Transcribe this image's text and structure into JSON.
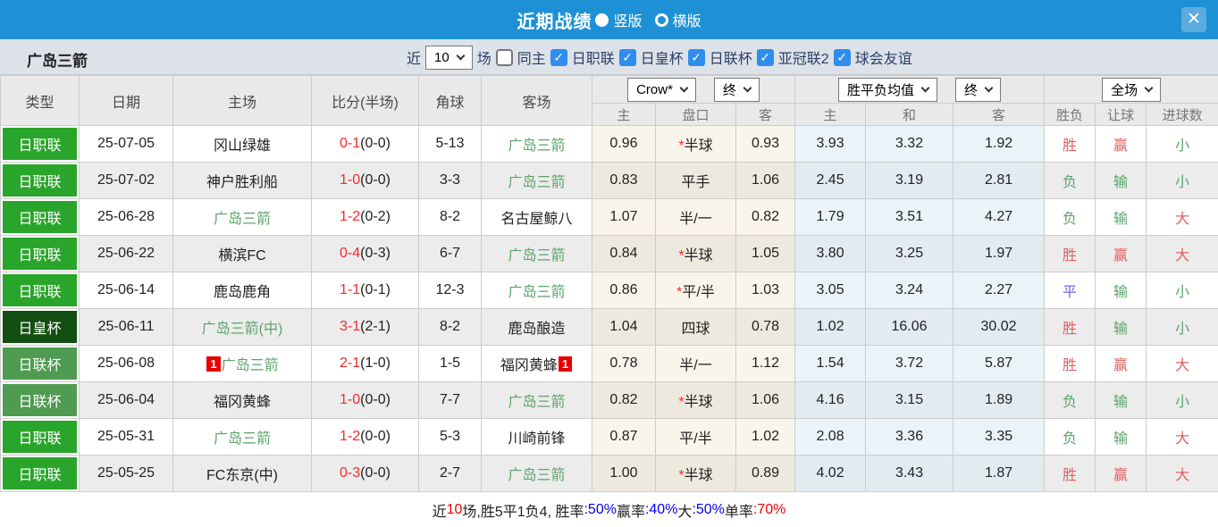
{
  "titlebar": {
    "title": "近期战绩",
    "vertical_label": "竖版",
    "horizontal_label": "横版",
    "close": "✕"
  },
  "filter": {
    "team": "广岛三箭",
    "near": "近",
    "count": "10",
    "matches": "场",
    "same_home": "同主",
    "leagues": [
      "日职联",
      "日皇杯",
      "日联杯",
      "亚冠联2",
      "球会友谊"
    ]
  },
  "league_colors": {
    "日职联": "#2aa52b",
    "日皇杯": "#134f13",
    "日联杯": "#4f9b51"
  },
  "table": {
    "col_headers": {
      "type": "类型",
      "date": "日期",
      "home": "主场",
      "score": "比分(半场)",
      "corner": "角球",
      "away": "客场"
    },
    "dropdowns": {
      "bookmaker": "Crow*",
      "bookmaker_period": "终",
      "avg": "胜平负均值",
      "avg_period": "终",
      "scope": "全场"
    },
    "sub_headers": [
      "主",
      "盘口",
      "客",
      "主",
      "和",
      "客",
      "胜负",
      "让球",
      "进球数"
    ],
    "rows": [
      {
        "league": "日职联",
        "date": "25-07-05",
        "home": {
          "name": "冈山绿雄",
          "green": false
        },
        "score": "0-1",
        "half": "(0-0)",
        "corner": "5-13",
        "away": {
          "name": "广岛三箭",
          "green": true
        },
        "odds": {
          "home": "0.96",
          "star": true,
          "handicap": "半球",
          "away": "0.93"
        },
        "avg": {
          "win": "3.93",
          "draw": "3.32",
          "lose": "1.92"
        },
        "result": {
          "outcome": "胜",
          "outcome_color": "red",
          "spread": "赢",
          "spread_color": "red",
          "goals": "小",
          "goals_color": "green"
        }
      },
      {
        "league": "日职联",
        "date": "25-07-02",
        "home": {
          "name": "神户胜利船",
          "green": false
        },
        "score": "1-0",
        "half": "(0-0)",
        "corner": "3-3",
        "away": {
          "name": "广岛三箭",
          "green": true
        },
        "odds": {
          "home": "0.83",
          "star": false,
          "handicap": "平手",
          "away": "1.06"
        },
        "avg": {
          "win": "2.45",
          "draw": "3.19",
          "lose": "2.81"
        },
        "result": {
          "outcome": "负",
          "outcome_color": "green",
          "spread": "输",
          "spread_color": "green",
          "goals": "小",
          "goals_color": "green"
        }
      },
      {
        "league": "日职联",
        "date": "25-06-28",
        "home": {
          "name": "广岛三箭",
          "green": true
        },
        "score": "1-2",
        "half": "(0-2)",
        "corner": "8-2",
        "away": {
          "name": "名古屋鲸八",
          "green": false
        },
        "odds": {
          "home": "1.07",
          "star": false,
          "handicap": "半/一",
          "away": "0.82"
        },
        "avg": {
          "win": "1.79",
          "draw": "3.51",
          "lose": "4.27"
        },
        "result": {
          "outcome": "负",
          "outcome_color": "green",
          "spread": "输",
          "spread_color": "green",
          "goals": "大",
          "goals_color": "red"
        }
      },
      {
        "league": "日职联",
        "date": "25-06-22",
        "home": {
          "name": "横滨FC",
          "green": false
        },
        "score": "0-4",
        "half": "(0-3)",
        "corner": "6-7",
        "away": {
          "name": "广岛三箭",
          "green": true
        },
        "odds": {
          "home": "0.84",
          "star": true,
          "handicap": "半球",
          "away": "1.05"
        },
        "avg": {
          "win": "3.80",
          "draw": "3.25",
          "lose": "1.97"
        },
        "result": {
          "outcome": "胜",
          "outcome_color": "red",
          "spread": "赢",
          "spread_color": "red",
          "goals": "大",
          "goals_color": "red"
        }
      },
      {
        "league": "日职联",
        "date": "25-06-14",
        "home": {
          "name": "鹿岛鹿角",
          "green": false
        },
        "score": "1-1",
        "half": "(0-1)",
        "corner": "12-3",
        "away": {
          "name": "广岛三箭",
          "green": true
        },
        "odds": {
          "home": "0.86",
          "star": true,
          "handicap": "平/半",
          "away": "1.03"
        },
        "avg": {
          "win": "3.05",
          "draw": "3.24",
          "lose": "2.27"
        },
        "result": {
          "outcome": "平",
          "outcome_color": "blue",
          "spread": "输",
          "spread_color": "green",
          "goals": "小",
          "goals_color": "green"
        }
      },
      {
        "league": "日皇杯",
        "date": "25-06-11",
        "home": {
          "name": "广岛三箭(中)",
          "green": true
        },
        "score": "3-1",
        "half": "(2-1)",
        "corner": "8-2",
        "away": {
          "name": "鹿岛酿造",
          "green": false
        },
        "odds": {
          "home": "1.04",
          "star": false,
          "handicap": "四球",
          "away": "0.78"
        },
        "avg": {
          "win": "1.02",
          "draw": "16.06",
          "lose": "30.02"
        },
        "result": {
          "outcome": "胜",
          "outcome_color": "red",
          "spread": "输",
          "spread_color": "green",
          "goals": "小",
          "goals_color": "green"
        }
      },
      {
        "league": "日联杯",
        "date": "25-06-08",
        "home": {
          "name": "广岛三箭",
          "green": true,
          "badge": "1"
        },
        "score": "2-1",
        "half": "(1-0)",
        "corner": "1-5",
        "away": {
          "name": "福冈黄蜂",
          "green": false,
          "badge": "1"
        },
        "odds": {
          "home": "0.78",
          "star": false,
          "handicap": "半/一",
          "away": "1.12"
        },
        "avg": {
          "win": "1.54",
          "draw": "3.72",
          "lose": "5.87"
        },
        "result": {
          "outcome": "胜",
          "outcome_color": "red",
          "spread": "赢",
          "spread_color": "red",
          "goals": "大",
          "goals_color": "red"
        }
      },
      {
        "league": "日联杯",
        "date": "25-06-04",
        "home": {
          "name": "福冈黄蜂",
          "green": false
        },
        "score": "1-0",
        "half": "(0-0)",
        "corner": "7-7",
        "away": {
          "name": "广岛三箭",
          "green": true
        },
        "odds": {
          "home": "0.82",
          "star": true,
          "handicap": "半球",
          "away": "1.06"
        },
        "avg": {
          "win": "4.16",
          "draw": "3.15",
          "lose": "1.89"
        },
        "result": {
          "outcome": "负",
          "outcome_color": "green",
          "spread": "输",
          "spread_color": "green",
          "goals": "小",
          "goals_color": "green"
        }
      },
      {
        "league": "日职联",
        "date": "25-05-31",
        "home": {
          "name": "广岛三箭",
          "green": true
        },
        "score": "1-2",
        "half": "(0-0)",
        "corner": "5-3",
        "away": {
          "name": "川崎前锋",
          "green": false
        },
        "odds": {
          "home": "0.87",
          "star": false,
          "handicap": "平/半",
          "away": "1.02"
        },
        "avg": {
          "win": "2.08",
          "draw": "3.36",
          "lose": "3.35"
        },
        "result": {
          "outcome": "负",
          "outcome_color": "green",
          "spread": "输",
          "spread_color": "green",
          "goals": "大",
          "goals_color": "red"
        }
      },
      {
        "league": "日职联",
        "date": "25-05-25",
        "home": {
          "name": "FC东京(中)",
          "green": false
        },
        "score": "0-3",
        "half": "(0-0)",
        "corner": "2-7",
        "away": {
          "name": "广岛三箭",
          "green": true
        },
        "odds": {
          "home": "1.00",
          "star": true,
          "handicap": "半球",
          "away": "0.89"
        },
        "avg": {
          "win": "4.02",
          "draw": "3.43",
          "lose": "1.87"
        },
        "result": {
          "outcome": "胜",
          "outcome_color": "red",
          "spread": "赢",
          "spread_color": "red",
          "goals": "大",
          "goals_color": "red"
        }
      }
    ]
  },
  "footer": {
    "segments": [
      {
        "text": "近",
        "color": "black"
      },
      {
        "text": "10",
        "color": "red"
      },
      {
        "text": "场,胜5平1负4, 胜率",
        "color": "black"
      },
      {
        "text": ":50%",
        "color": "blue"
      },
      {
        "text": " 赢率",
        "color": "black"
      },
      {
        "text": ":40%",
        "color": "blue"
      },
      {
        "text": " 大",
        "color": "black"
      },
      {
        "text": ":50%",
        "color": "blue"
      },
      {
        "text": " 单率",
        "color": "black"
      },
      {
        "text": ":70%",
        "color": "red"
      }
    ]
  }
}
